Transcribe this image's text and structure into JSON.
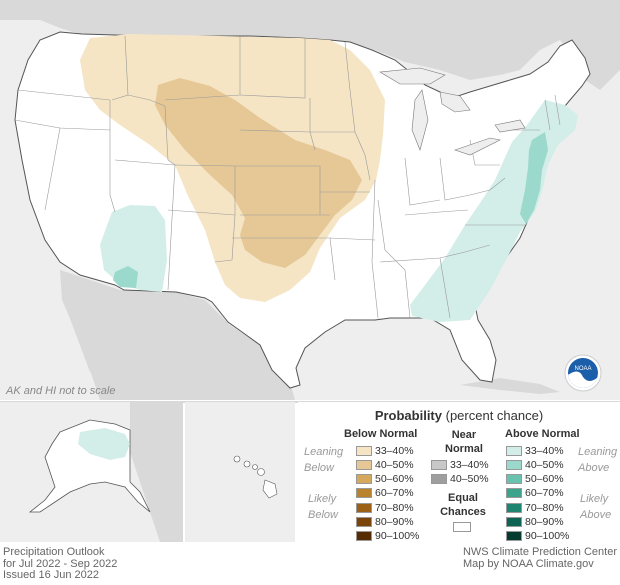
{
  "map": {
    "note": "AK and HI not to scale",
    "logo_text": "NOAA",
    "colors": {
      "land": "#ffffff",
      "outside": "#d9d9d9",
      "ocean": "#eeeeee",
      "border": "#555555",
      "state_line": "#aaaaaa",
      "below_33_40": "#f5e5c5",
      "below_40_50": "#e6c897",
      "above_33_40": "#d3eee8",
      "above_40_50": "#9ad9cb"
    }
  },
  "legend": {
    "title_bold": "Probability",
    "title_rest": "(percent chance)",
    "below_header": "Below Normal",
    "near_header_1": "Near",
    "near_header_2": "Normal",
    "above_header": "Above Normal",
    "leaning_below_1": "Leaning",
    "leaning_below_2": "Below",
    "likely_below_1": "Likely",
    "likely_below_2": "Below",
    "leaning_above_1": "Leaning",
    "leaning_above_2": "Above",
    "likely_above_1": "Likely",
    "likely_above_2": "Above",
    "below_rows": [
      {
        "label": "33–40%",
        "color": "#f5e5c5"
      },
      {
        "label": "40–50%",
        "color": "#e6c897"
      },
      {
        "label": "50–60%",
        "color": "#d4a95e"
      },
      {
        "label": "60–70%",
        "color": "#b9822c"
      },
      {
        "label": "70–80%",
        "color": "#9b6217"
      },
      {
        "label": "80–90%",
        "color": "#7b440a"
      },
      {
        "label": "90–100%",
        "color": "#562d03"
      }
    ],
    "near_rows": [
      {
        "label": "33–40%",
        "color": "#c8c8c8"
      },
      {
        "label": "40–50%",
        "color": "#9e9e9e"
      }
    ],
    "equal_1": "Equal",
    "equal_2": "Chances",
    "above_rows": [
      {
        "label": "33–40%",
        "color": "#d3eee8"
      },
      {
        "label": "40–50%",
        "color": "#9ad9cb"
      },
      {
        "label": "50–60%",
        "color": "#69c2ad"
      },
      {
        "label": "60–70%",
        "color": "#3ca48d"
      },
      {
        "label": "70–80%",
        "color": "#1f8570"
      },
      {
        "label": "80–90%",
        "color": "#0e6453"
      },
      {
        "label": "90–100%",
        "color": "#053a2e"
      }
    ]
  },
  "footer": {
    "line1": "Precipitation Outlook",
    "line2": "for Jul 2022 - Sep 2022",
    "line3": "Issued 16 Jun 2022",
    "right1": "NWS Climate Prediction Center",
    "right2": "Map by NOAA Climate.gov"
  }
}
